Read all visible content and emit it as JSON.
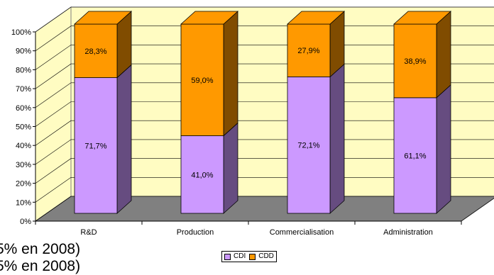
{
  "chart_data": {
    "type": "bar",
    "stacked": true,
    "three_d": true,
    "categories": [
      "R&D",
      "Production",
      "Commercialisation",
      "Administration"
    ],
    "series": [
      {
        "name": "CDI",
        "values": [
          71.7,
          41.0,
          72.1,
          61.1
        ],
        "labels": [
          "71,7%",
          "41,0%",
          "72,1%",
          "61,1%"
        ],
        "color": "#cc99ff",
        "side_color": "#664c80"
      },
      {
        "name": "CDD",
        "values": [
          28.3,
          59.0,
          27.9,
          38.9
        ],
        "labels": [
          "28,3%",
          "59,0%",
          "27,9%",
          "38,9%"
        ],
        "color": "#ff9900",
        "side_color": "#804c00"
      }
    ],
    "y_ticks": [
      "0%",
      "10%",
      "20%",
      "30%",
      "40%",
      "50%",
      "60%",
      "70%",
      "80%",
      "90%",
      "100%"
    ],
    "ylim": [
      0,
      100
    ],
    "grid": true,
    "wall_color": "#fffcc2",
    "floor_color": "#808080",
    "legend": "bottom"
  },
  "stray_text": {
    "line1": "5% en 2008)",
    "line2": "5% en 2008)"
  }
}
